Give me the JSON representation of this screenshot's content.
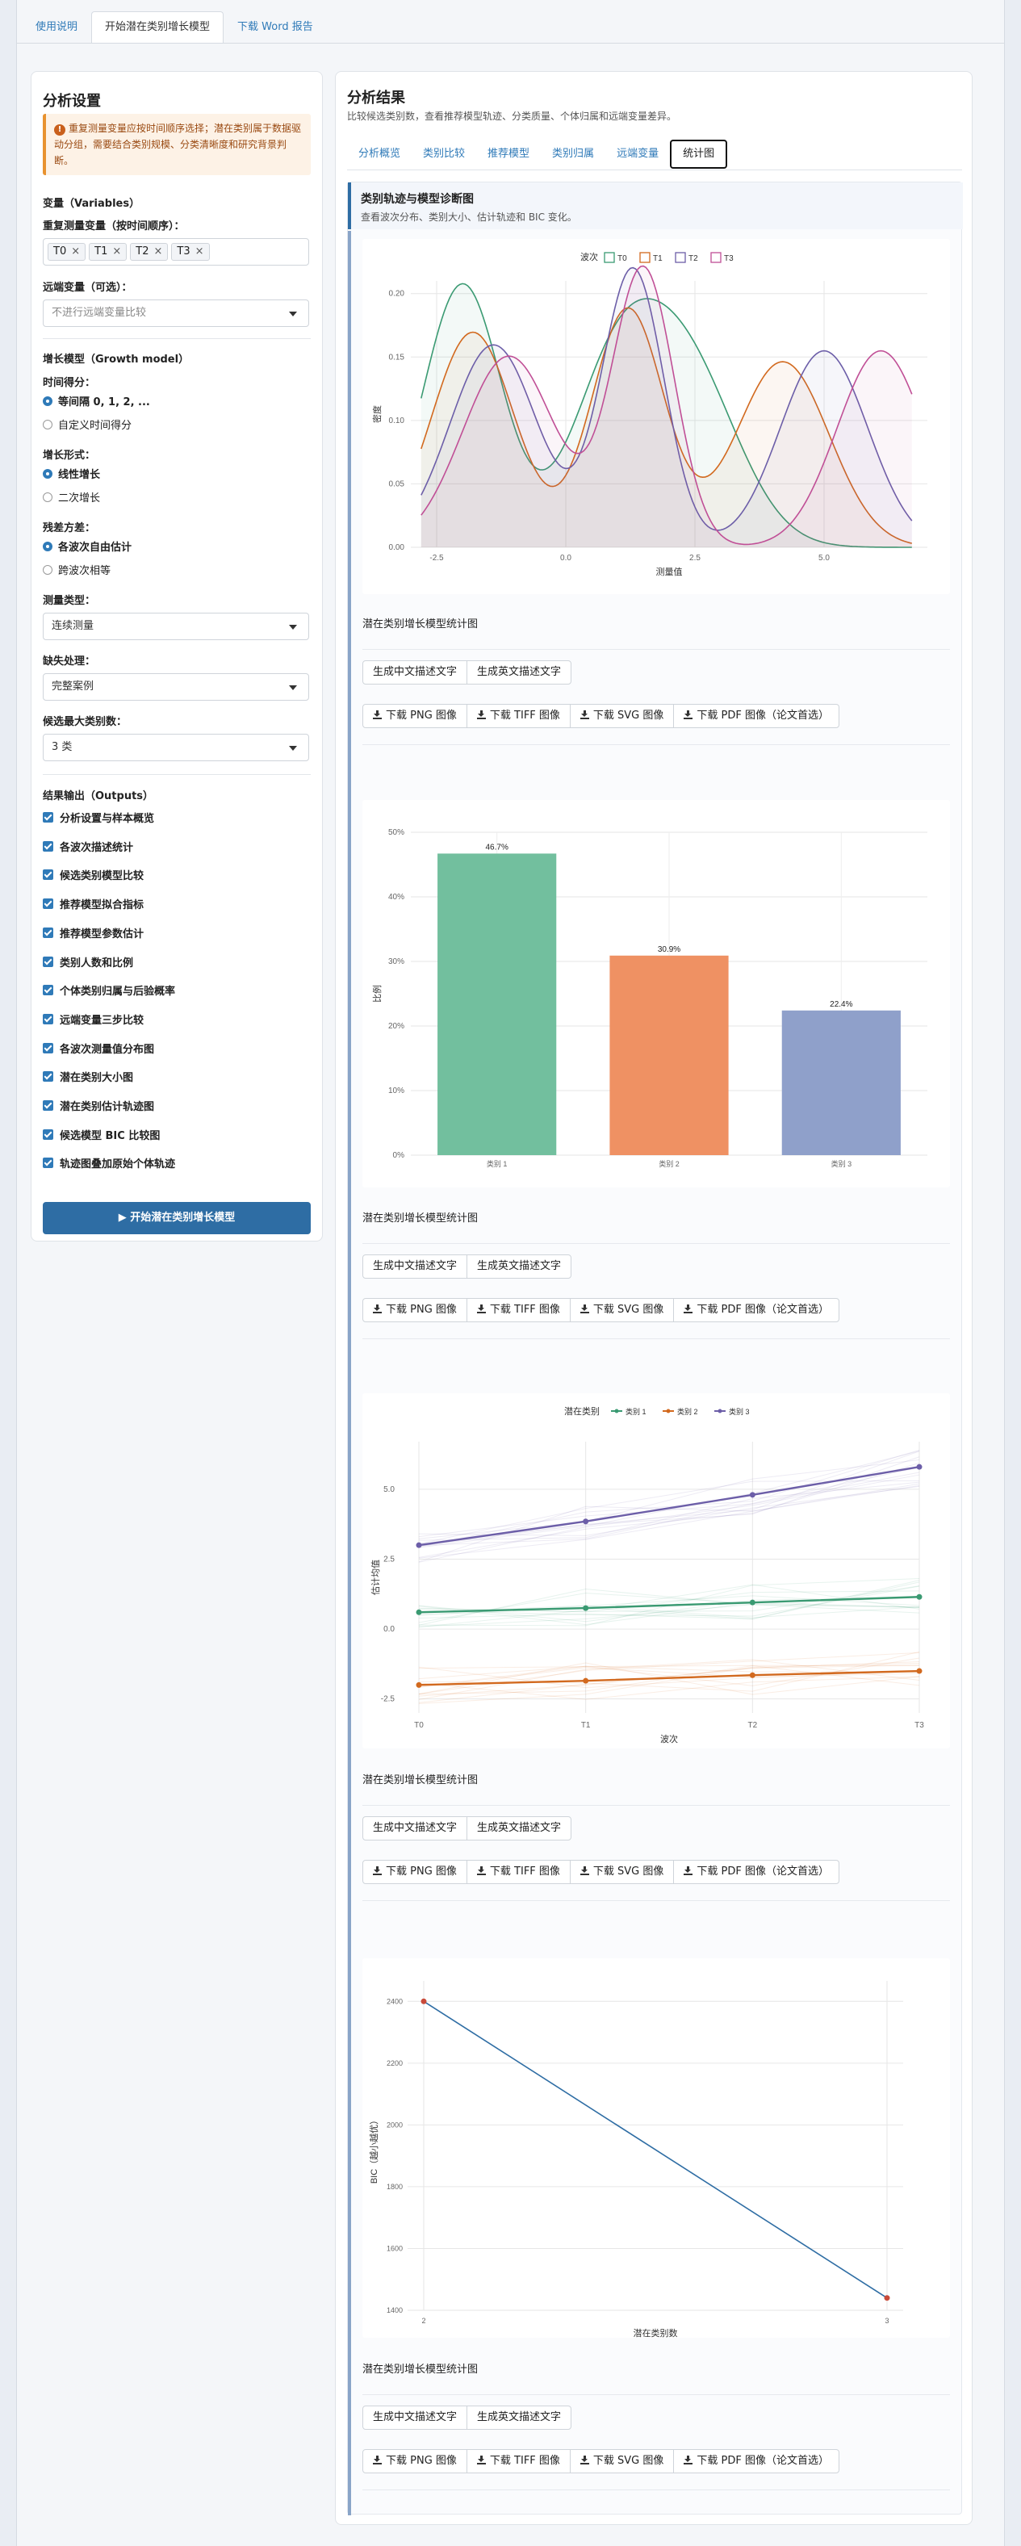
{
  "tabs": [
    "使用说明",
    "开始潜在类别增长模型",
    "下载 Word 报告"
  ],
  "sidebar": {
    "title": "分析设置",
    "warning": "重复测量变量应按时间顺序选择；潜在类别属于数据驱动分组，需要结合类别规模、分类清晰度和研究背景判断。",
    "variables_heading": "变量（Variables）",
    "repeated_label": "重复测量变量（按时间顺序）：",
    "repeated_vars": [
      "T0",
      "T1",
      "T2",
      "T3"
    ],
    "distal_label": "远端变量（可选）：",
    "distal_placeholder": "不进行远端变量比较",
    "growth_heading": "增长模型（Growth model）",
    "time_score_label": "时间得分：",
    "time_score_options": [
      "等间隔 0, 1, 2, ...",
      "自定义时间得分"
    ],
    "growth_form_label": "增长形式：",
    "growth_form_options": [
      "线性增长",
      "二次增长"
    ],
    "residual_label": "残差方差：",
    "residual_options": [
      "各波次自由估计",
      "跨波次相等"
    ],
    "measure_type_label": "测量类型：",
    "measure_type_value": "连续测量",
    "missing_label": "缺失处理：",
    "missing_value": "完整案例",
    "max_class_label": "候选最大类别数：",
    "max_class_value": "3 类",
    "outputs_heading": "结果输出（Outputs）",
    "outputs": [
      "分析设置与样本概览",
      "各波次描述统计",
      "候选类别模型比较",
      "推荐模型拟合指标",
      "推荐模型参数估计",
      "类别人数和比例",
      "个体类别归属与后验概率",
      "远端变量三步比较",
      "各波次测量值分布图",
      "潜在类别大小图",
      "潜在类别估计轨迹图",
      "候选模型 BIC 比较图",
      "轨迹图叠加原始个体轨迹"
    ],
    "run_button": "▶ 开始潜在类别增长模型"
  },
  "main": {
    "title": "分析结果",
    "subtitle": "比较候选类别数，查看推荐模型轨迹、分类质量、个体归属和远端变量差异。",
    "tabs": [
      "分析概览",
      "类别比较",
      "推荐模型",
      "类别归属",
      "远端变量",
      "统计图"
    ],
    "card_title": "类别轨迹与模型诊断图",
    "card_subtitle": "查看波次分布、类别大小、估计轨迹和 BIC 变化。",
    "caption": "潜在类别增长模型统计图",
    "text_buttons": [
      "生成中文描述文字",
      "生成英文描述文字"
    ],
    "download_buttons": [
      "下载 PNG 图像",
      "下载 TIFF 图像",
      "下载 SVG 图像",
      "下载 PDF 图像（论文首选）"
    ]
  },
  "colors": {
    "accent": "#2e6da4",
    "link": "#2f7ab8",
    "warn_bg": "#fdf2e6",
    "warn_text": "#9a4a12"
  },
  "chart_data": [
    {
      "type": "area",
      "xlabel": "测量值",
      "ylabel": "密度",
      "legend_title": "波次",
      "legend_position": "top",
      "xticks": [
        "-2.5",
        "0.0",
        "2.5",
        "5.0"
      ],
      "yticks": [
        "0.00",
        "0.05",
        "0.10",
        "0.15",
        "0.20"
      ],
      "xlim": [
        -3,
        7
      ],
      "ylim": [
        0,
        0.21
      ],
      "series": [
        {
          "name": "T0",
          "color": "#3a9a72",
          "components": [
            [
              0.39,
              -2.0,
              0.75
            ],
            [
              0.25,
              0.9,
              0.85
            ],
            [
              0.36,
              2.3,
              1.0
            ]
          ]
        },
        {
          "name": "T1",
          "color": "#d2691e",
          "components": [
            [
              0.34,
              -1.8,
              0.8
            ],
            [
              0.33,
              1.2,
              0.7
            ],
            [
              0.33,
              4.2,
              0.9
            ]
          ]
        },
        {
          "name": "T2",
          "color": "#6c5ea8",
          "components": [
            [
              0.34,
              -1.4,
              0.85
            ],
            [
              0.33,
              1.3,
              0.6
            ],
            [
              0.33,
              5.0,
              0.85
            ]
          ]
        },
        {
          "name": "T3",
          "color": "#c04f96",
          "components": [
            [
              0.34,
              -1.1,
              0.9
            ],
            [
              0.33,
              1.5,
              0.6
            ],
            [
              0.33,
              6.1,
              0.85
            ]
          ]
        }
      ]
    },
    {
      "type": "bar",
      "ylabel": "比例",
      "categories": [
        "类别 1",
        "类别 2",
        "类别 3"
      ],
      "values": [
        46.7,
        30.9,
        22.4
      ],
      "labels": [
        "46.7%",
        "30.9%",
        "22.4%"
      ],
      "colors": [
        "#72bf9e",
        "#ef9163",
        "#8fa0ca"
      ],
      "yticks": [
        "0%",
        "10%",
        "20%",
        "30%",
        "40%",
        "50%"
      ],
      "ylim": [
        0,
        50
      ]
    },
    {
      "type": "line",
      "xlabel": "波次",
      "ylabel": "估计均值",
      "legend_title": "潜在类别",
      "legend_position": "top",
      "categories": [
        "T0",
        "T1",
        "T2",
        "T3"
      ],
      "yticks": [
        "-2.5",
        "0.0",
        "2.5",
        "5.0"
      ],
      "ylim": [
        -3,
        6.7
      ],
      "series": [
        {
          "name": "类别 1",
          "color": "#3a9a72",
          "values": [
            0.6,
            0.75,
            0.95,
            1.15
          ]
        },
        {
          "name": "类别 2",
          "color": "#d2691e",
          "values": [
            -2.0,
            -1.85,
            -1.65,
            -1.5
          ]
        },
        {
          "name": "类别 3",
          "color": "#6c5ea8",
          "values": [
            3.0,
            3.85,
            4.8,
            5.8
          ]
        }
      ]
    },
    {
      "type": "line",
      "xlabel": "潜在类别数",
      "ylabel": "BIC（越小越优）",
      "categories": [
        "2",
        "3"
      ],
      "values": [
        2400,
        1440
      ],
      "yticks": [
        "1400",
        "1600",
        "1800",
        "2000",
        "2200",
        "2400"
      ],
      "ylim": [
        1400,
        2440
      ],
      "line_color": "#2e6da4",
      "point_color": "#c94a3a"
    }
  ]
}
